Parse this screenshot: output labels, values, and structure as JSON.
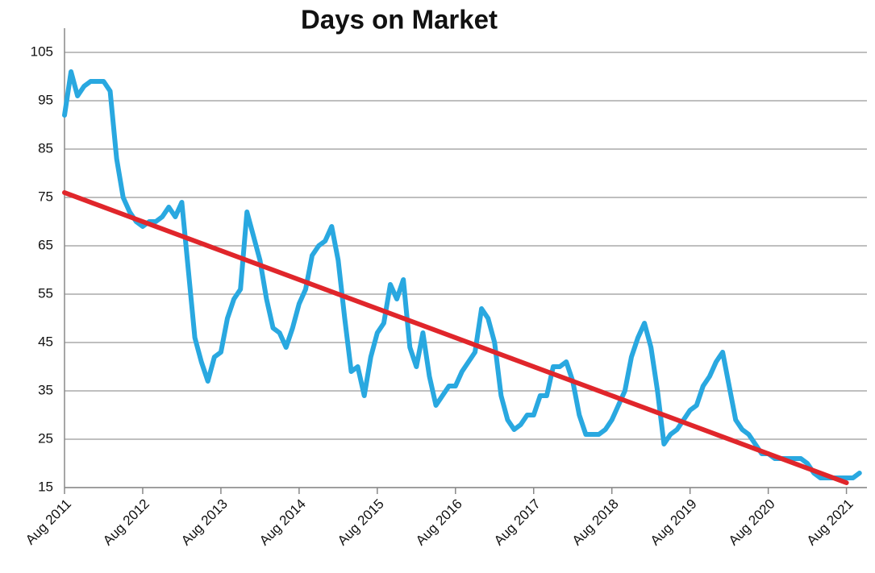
{
  "chart_data": {
    "type": "line",
    "title": "Days on Market",
    "categories": [
      "Aug 2011",
      null,
      null,
      null,
      null,
      null,
      null,
      null,
      null,
      null,
      null,
      null,
      "Aug 2012",
      null,
      null,
      null,
      null,
      null,
      null,
      null,
      null,
      null,
      null,
      null,
      "Aug 2013",
      null,
      null,
      null,
      null,
      null,
      null,
      null,
      null,
      null,
      null,
      null,
      "Aug 2014",
      null,
      null,
      null,
      null,
      null,
      null,
      null,
      null,
      null,
      null,
      null,
      "Aug 2015",
      null,
      null,
      null,
      null,
      null,
      null,
      null,
      null,
      null,
      null,
      null,
      "Aug 2016",
      null,
      null,
      null,
      null,
      null,
      null,
      null,
      null,
      null,
      null,
      null,
      "Aug 2017",
      null,
      null,
      null,
      null,
      null,
      null,
      null,
      null,
      null,
      null,
      null,
      "Aug 2018",
      null,
      null,
      null,
      null,
      null,
      null,
      null,
      null,
      null,
      null,
      null,
      "Aug 2019",
      null,
      null,
      null,
      null,
      null,
      null,
      null,
      null,
      null,
      null,
      null,
      "Aug 2020",
      null,
      null,
      null,
      null,
      null,
      null,
      null,
      null,
      null,
      null,
      null,
      "Aug 2021",
      null,
      null
    ],
    "series": [
      {
        "color": "#29a8e0",
        "values": [
          92,
          101,
          96,
          98,
          99,
          99,
          99,
          97,
          83,
          75,
          72,
          70,
          69,
          70,
          70,
          71,
          73,
          71,
          74,
          60,
          46,
          41,
          37,
          42,
          43,
          50,
          54,
          56,
          72,
          67,
          62,
          54,
          48,
          47,
          44,
          48,
          53,
          56,
          63,
          65,
          66,
          69,
          62,
          50,
          39,
          40,
          34,
          42,
          47,
          49,
          57,
          54,
          58,
          44,
          40,
          47,
          38,
          32,
          34,
          36,
          36,
          39,
          41,
          43,
          52,
          50,
          45,
          34,
          29,
          27,
          28,
          30,
          30,
          34,
          34,
          40,
          40,
          41,
          37,
          30,
          26,
          26,
          26,
          27,
          29,
          32,
          35,
          42,
          46,
          49,
          44,
          35,
          24,
          26,
          27,
          29,
          31,
          32,
          36,
          38,
          41,
          43,
          36,
          29,
          27,
          26,
          24,
          22,
          22,
          21,
          21,
          21,
          21,
          21,
          20,
          18,
          17,
          17,
          17,
          17,
          17,
          17,
          18
        ]
      },
      {
        "color": "#e0262b",
        "values": [
          76,
          75.5,
          75,
          74.5,
          74,
          73.5,
          73,
          72.5,
          72,
          71.5,
          71,
          70.5,
          70,
          69.5,
          69,
          68.5,
          68,
          67.5,
          67,
          66.5,
          66,
          65.5,
          65,
          64.5,
          64,
          63.5,
          63,
          62.5,
          62,
          61.5,
          61,
          60.5,
          60,
          59.5,
          59,
          58.5,
          58,
          57.5,
          57,
          56.5,
          56,
          55.5,
          55,
          54.5,
          54,
          53.5,
          53,
          52.5,
          52,
          51.5,
          51,
          50.5,
          50,
          49.5,
          49,
          48.5,
          48,
          47.5,
          47,
          46.5,
          46,
          45.5,
          45,
          44.5,
          44,
          43.5,
          43,
          42.5,
          42,
          41.5,
          41,
          40.5,
          40,
          39.5,
          39,
          38.5,
          38,
          37.5,
          37,
          36.5,
          36,
          35.5,
          35,
          34.5,
          34,
          33.5,
          33,
          32.5,
          32,
          31.5,
          31,
          30.5,
          30,
          29.5,
          29,
          28.5,
          28,
          27.5,
          27,
          26.5,
          26,
          25.5,
          25,
          24.5,
          24,
          23.5,
          23,
          22.5,
          22,
          21.5,
          21,
          20.5,
          20,
          19.5,
          19,
          18.5,
          18,
          17.5,
          17,
          16.5,
          16,
          null,
          null
        ]
      }
    ],
    "ylim": [
      15,
      105
    ],
    "yticks": [
      15,
      25,
      35,
      45,
      55,
      65,
      75,
      85,
      95,
      105
    ],
    "grid": true
  }
}
